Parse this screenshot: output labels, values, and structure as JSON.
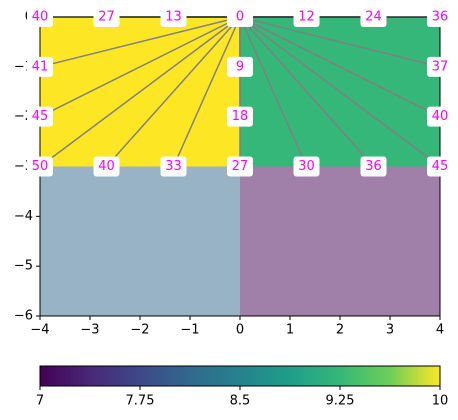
{
  "chart_data": {
    "type": "annotated_regions",
    "regions": [
      {
        "x": [
          -4,
          0
        ],
        "y": [
          -3,
          0
        ],
        "color": "#fde725"
      },
      {
        "x": [
          0,
          4
        ],
        "y": [
          -3,
          0
        ],
        "color": "#35b779"
      },
      {
        "x": [
          -4,
          0
        ],
        "y": [
          -6,
          -3
        ],
        "color": "#97b3c5"
      },
      {
        "x": [
          0,
          4
        ],
        "y": [
          -6,
          -3
        ],
        "color": "#a07fa8"
      }
    ],
    "origin": [
      0,
      0
    ],
    "line_color": "#808080",
    "label_color": "#ff00ff",
    "points": {
      "x": [
        -4,
        -2.67,
        -1.33,
        0,
        1.33,
        2.67,
        4,
        -4,
        -4,
        -4,
        0,
        0,
        0,
        4,
        4,
        4,
        -2.67,
        -1.33,
        1.33,
        2.67
      ],
      "y": [
        0,
        0,
        0,
        0,
        0,
        0,
        0,
        -1,
        -2,
        -3,
        -1,
        -2,
        -3,
        -1,
        -2,
        -3,
        -3,
        -3,
        -3,
        -3
      ],
      "values": [
        40,
        27,
        13,
        0,
        12,
        24,
        36,
        41,
        45,
        50,
        9,
        18,
        27,
        37,
        40,
        45,
        40,
        33,
        30,
        36
      ]
    },
    "xlim": [
      -4,
      4
    ],
    "ylim": [
      -6,
      0
    ],
    "xticks": [
      {
        "value": -4,
        "label": "−4"
      },
      {
        "value": -3,
        "label": "−3"
      },
      {
        "value": -2,
        "label": "−2"
      },
      {
        "value": -1,
        "label": "−1"
      },
      0,
      1,
      2,
      3,
      4
    ],
    "yticks": [
      0,
      {
        "value": -1,
        "label": "−1"
      },
      {
        "value": -2,
        "label": "−2"
      },
      {
        "value": -3,
        "label": "−3"
      },
      {
        "value": -4,
        "label": "−4"
      },
      {
        "value": -5,
        "label": "−5"
      },
      {
        "value": -6,
        "label": "−6"
      }
    ],
    "colorbar": {
      "colormap": "viridis",
      "lim": [
        7,
        10
      ],
      "ticks": [
        7,
        7.75,
        8.5,
        9.25,
        10
      ]
    }
  }
}
